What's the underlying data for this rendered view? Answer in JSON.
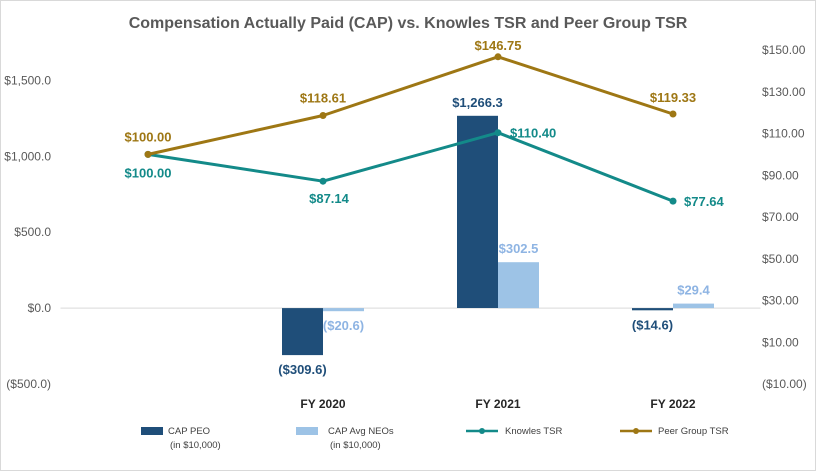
{
  "chart_data": {
    "type": "bar",
    "title": "Compensation Actually Paid (CAP) vs. Knowles TSR and Peer Group TSR",
    "categories": [
      "",
      "FY 2020",
      "FY 2021",
      "FY 2022"
    ],
    "y_left": {
      "ylim": [
        -500,
        1700
      ],
      "ticks": [
        -500,
        0,
        500,
        1000,
        1500
      ],
      "tick_labels": [
        "($500.0)",
        "$0.0",
        "$500.0",
        "$1,000.0",
        "$1,500.0"
      ]
    },
    "y_right": {
      "ylim": [
        -10,
        150
      ],
      "ticks": [
        -10,
        10,
        30,
        50,
        70,
        90,
        110,
        130,
        150
      ],
      "tick_labels": [
        "($10.00)",
        "$10.00",
        "$30.00",
        "$50.00",
        "$70.00",
        "$90.00",
        "$110.00",
        "$130.00",
        "$150.00"
      ]
    },
    "series": [
      {
        "name": "CAP PEO",
        "note": "(in $10,000)",
        "type": "bar",
        "axis": "left",
        "color": "#1F4E79",
        "label_color": "#1F4E79",
        "values": [
          null,
          -309.6,
          1266.3,
          -14.6
        ],
        "labels": [
          null,
          "($309.6)",
          "$1,266.3",
          "($14.6)"
        ]
      },
      {
        "name": "CAP Avg NEOs",
        "note": "(in $10,000)",
        "type": "bar",
        "axis": "left",
        "color": "#9DC3E6",
        "label_color": "#8EB4E3",
        "values": [
          null,
          -20.6,
          302.5,
          29.4
        ],
        "labels": [
          null,
          "($20.6)",
          "$302.5",
          "$29.4"
        ]
      },
      {
        "name": "Knowles TSR",
        "type": "line",
        "axis": "right",
        "color": "#138A89",
        "values": [
          100.0,
          87.14,
          110.4,
          77.64
        ],
        "labels": [
          "$100.00",
          "$87.14",
          "$110.40",
          "$77.64"
        ]
      },
      {
        "name": "Peer Group TSR",
        "type": "line",
        "axis": "right",
        "color": "#9E7714",
        "values": [
          100.0,
          118.61,
          146.75,
          119.33
        ],
        "labels": [
          "$100.00",
          "$118.61",
          "$146.75",
          "$119.33"
        ]
      }
    ],
    "legend": "bottom",
    "grid": false
  }
}
